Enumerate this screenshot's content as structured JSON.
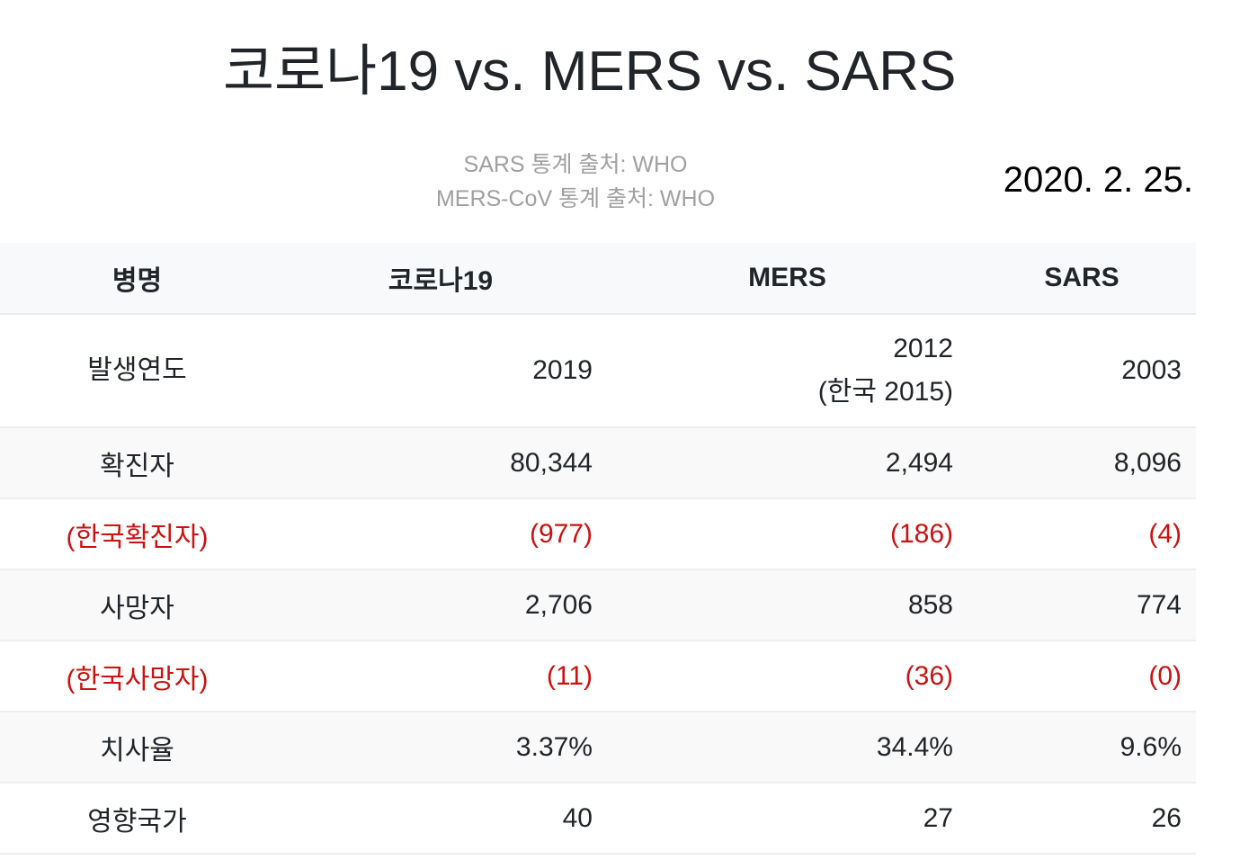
{
  "header": {
    "title": "코로나19 vs. MERS vs. SARS",
    "sources": [
      "SARS 통계 출처: WHO",
      "MERS-CoV 통계 출처: WHO"
    ],
    "date": "2020. 2. 25."
  },
  "table": {
    "columns": [
      "병명",
      "코로나19",
      "MERS",
      "SARS"
    ],
    "rows": [
      {
        "label": "발생연도",
        "covid": "2019",
        "mers_line1": "2012",
        "mers_line2": "(한국 2015)",
        "sars": "2003"
      },
      {
        "label": "확진자",
        "covid": "80,344",
        "mers": "2,494",
        "sars": "8,096"
      },
      {
        "label": "(한국확진자)",
        "covid": "(977)",
        "mers": "(186)",
        "sars": "(4)"
      },
      {
        "label": "사망자",
        "covid": "2,706",
        "mers": "858",
        "sars": "774"
      },
      {
        "label": "(한국사망자)",
        "covid": "(11)",
        "mers": "(36)",
        "sars": "(0)"
      },
      {
        "label": "치사율",
        "covid": "3.37%",
        "mers": "34.4%",
        "sars": "9.6%"
      },
      {
        "label": "영향국가",
        "covid": "40",
        "mers": "27",
        "sars": "26"
      }
    ]
  },
  "colors": {
    "text": "#212529",
    "highlight_red": "#cc1111",
    "source_gray": "#a0a0a0",
    "header_bg": "#f8f9fa",
    "stripe_bg": "#f9f9f9"
  }
}
